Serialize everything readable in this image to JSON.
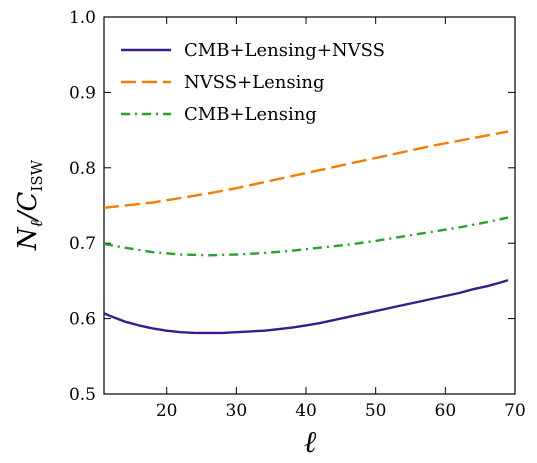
{
  "chart_data": {
    "type": "line",
    "xlabel": "ℓ",
    "ylabel": "N_ℓ/C_ISW",
    "xlim": [
      11,
      70
    ],
    "ylim": [
      0.5,
      1.0
    ],
    "xticks": [
      20,
      30,
      40,
      50,
      60,
      70
    ],
    "yticks": [
      0.5,
      0.6,
      0.7,
      0.8,
      0.9,
      1.0
    ],
    "legend_position": "top-left",
    "series": [
      {
        "name": "CMB+Lensing+NVSS",
        "color": "#3a1a8c",
        "style": "solid",
        "x": [
          11,
          12,
          14,
          16,
          18,
          20,
          22,
          24,
          26,
          28,
          30,
          32,
          34,
          36,
          38,
          40,
          42,
          44,
          46,
          48,
          50,
          52,
          54,
          56,
          58,
          60,
          62,
          64,
          66,
          68,
          69
        ],
        "y": [
          0.607,
          0.603,
          0.596,
          0.591,
          0.587,
          0.584,
          0.582,
          0.581,
          0.581,
          0.581,
          0.582,
          0.583,
          0.584,
          0.586,
          0.588,
          0.591,
          0.594,
          0.598,
          0.602,
          0.606,
          0.61,
          0.614,
          0.618,
          0.622,
          0.626,
          0.63,
          0.634,
          0.639,
          0.643,
          0.648,
          0.651
        ]
      },
      {
        "name": "NVSS+Lensing",
        "color": "#f57c00",
        "style": "dashed",
        "x": [
          11,
          14,
          18,
          22,
          26,
          30,
          34,
          38,
          42,
          46,
          50,
          54,
          58,
          62,
          66,
          69
        ],
        "y": [
          0.747,
          0.75,
          0.754,
          0.76,
          0.766,
          0.773,
          0.781,
          0.789,
          0.797,
          0.805,
          0.813,
          0.821,
          0.829,
          0.836,
          0.843,
          0.848
        ]
      },
      {
        "name": "CMB+Lensing",
        "color": "#2ca02c",
        "style": "dashdot",
        "x": [
          11,
          14,
          18,
          22,
          26,
          30,
          34,
          38,
          42,
          46,
          50,
          54,
          58,
          62,
          66,
          69
        ],
        "y": [
          0.699,
          0.694,
          0.688,
          0.685,
          0.684,
          0.685,
          0.687,
          0.69,
          0.694,
          0.698,
          0.703,
          0.709,
          0.715,
          0.721,
          0.728,
          0.734
        ]
      }
    ]
  }
}
